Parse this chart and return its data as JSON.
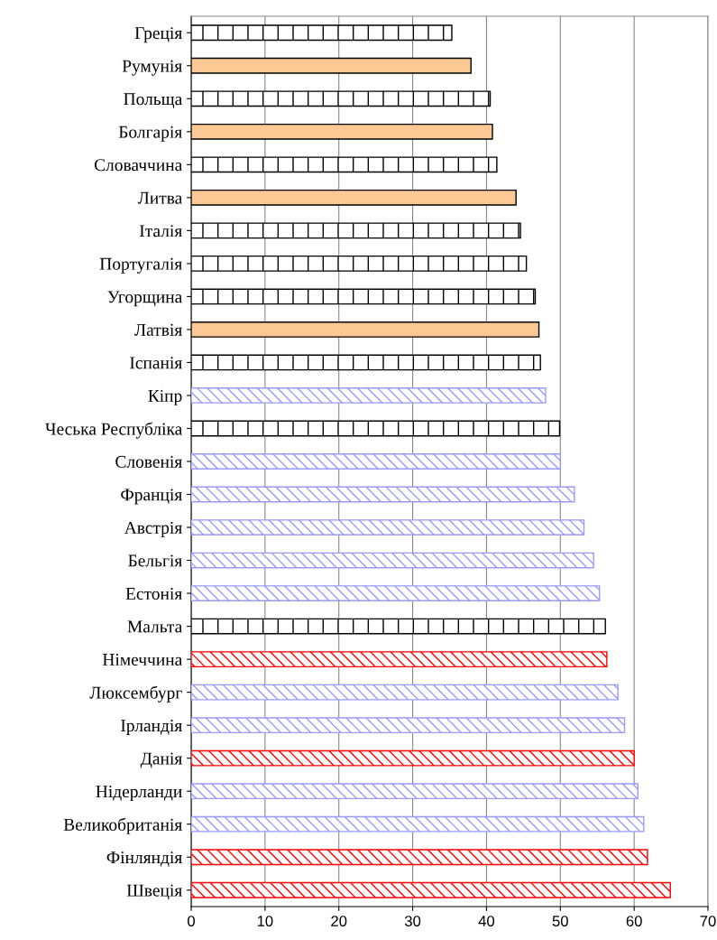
{
  "chart_data": {
    "type": "bar",
    "orientation": "horizontal",
    "categories": [
      "Греція",
      "Румунія",
      "Польща",
      "Болгарія",
      "Словаччина",
      "Литва",
      "Італія",
      "Португалія",
      "Угорщина",
      "Латвія",
      "Іспанія",
      "Кіпр",
      "Чеська Республіка",
      "Словенія",
      "Франція",
      "Австрія",
      "Бельгія",
      "Естонія",
      "Мальта",
      "Німеччина",
      "Люксембург",
      "Ірландія",
      "Данія",
      "Нідерланди",
      "Великобританія",
      "Фінляндія",
      "Швеція"
    ],
    "values": [
      35.3,
      37.9,
      40.5,
      40.8,
      41.4,
      44.0,
      44.6,
      45.4,
      46.6,
      47.1,
      47.3,
      48.0,
      49.9,
      50.0,
      51.9,
      53.2,
      54.5,
      55.3,
      56.1,
      56.3,
      57.8,
      58.7,
      60.0,
      60.5,
      61.3,
      61.8,
      64.9
    ],
    "colors": [
      "#000000",
      "#fcc995",
      "#000000",
      "#fcc995",
      "#000000",
      "#fcc995",
      "#000000",
      "#000000",
      "#000000",
      "#fcc995",
      "#000000",
      "#9999ff",
      "#000000",
      "#9999ff",
      "#9999ff",
      "#9999ff",
      "#9999ff",
      "#9999ff",
      "#000000",
      "#ff0000",
      "#9999ff",
      "#9999ff",
      "#ff0000",
      "#9999ff",
      "#9999ff",
      "#ff0000",
      "#ff0000"
    ],
    "xlim": [
      0,
      70
    ],
    "xticks": [
      0,
      10,
      20,
      30,
      40,
      50,
      60,
      70
    ],
    "grid": "x"
  }
}
